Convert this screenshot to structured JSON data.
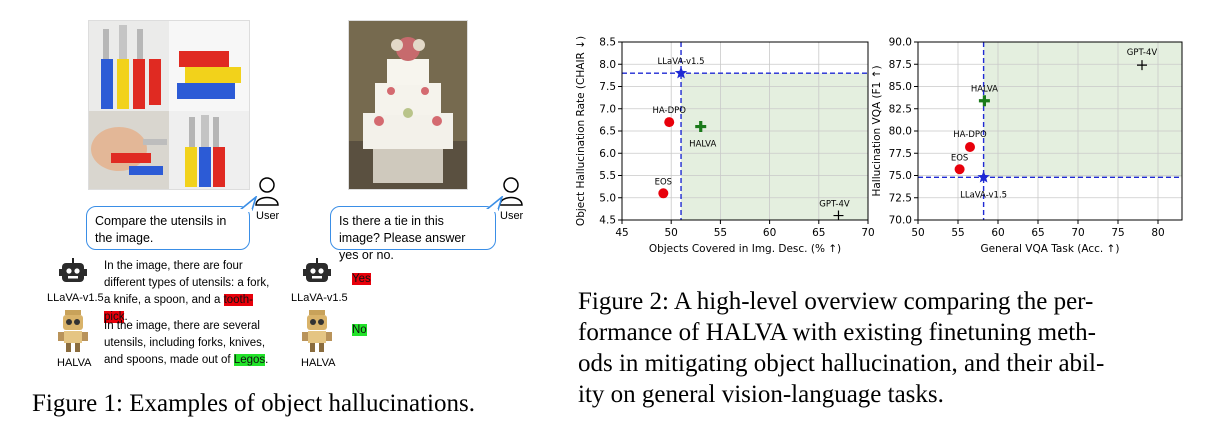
{
  "figure1": {
    "example1": {
      "user_label": "User",
      "prompt": "Compare the utensils in the image.",
      "llava": {
        "name": "LLaVA-v1.5",
        "text_before": "In the image, there are four different types of utensils:  a fork, a knife, a spoon, and a ",
        "highlight": "tooth-pick",
        "text_after": "."
      },
      "halva": {
        "name": "HALVA",
        "text_before": "In the image, there are several utensils, including forks, knives, and spoons, made out of ",
        "highlight": "Legos",
        "text_after": "."
      }
    },
    "example2": {
      "user_label": "User",
      "prompt": "Is there a tie in this image? Please answer yes or no.",
      "llava": {
        "name": "LLaVA-v1.5",
        "answer": "Yes"
      },
      "halva": {
        "name": "HALVA",
        "answer": "No"
      }
    },
    "caption": "Figure 1: Examples of object hallucinations."
  },
  "figure2": {
    "caption": "Figure 2: A high-level overview comparing the performance of HALVA with existing finetuning methods in mitigating object hallucination, and their ability on general vision-language tasks.",
    "caption_lines": [
      "Figure 2: A high-level overview comparing the per-",
      "formance of HALVA with existing finetuning meth-",
      "ods in mitigating object hallucination, and their abil-",
      "ity on general vision-language tasks."
    ]
  },
  "chart_data": [
    {
      "type": "scatter",
      "xlabel": "Objects Covered in Img. Desc. (% ↑)",
      "ylabel": "Object Hallucination Rate (CHAIR ↓)",
      "xlim": [
        45,
        70
      ],
      "ylim": [
        4.5,
        8.5
      ],
      "xticks": [
        45,
        50,
        55,
        60,
        65,
        70
      ],
      "yticks": [
        4.5,
        5.0,
        5.5,
        6.0,
        6.5,
        7.0,
        7.5,
        8.0,
        8.5
      ],
      "grid": true,
      "reference": {
        "name": "LLaVA-v1.5",
        "x": 51.0,
        "y": 7.8
      },
      "shaded_region": "x >= 51.0, y <= 7.8",
      "points": [
        {
          "name": "LLaVA-v1.5",
          "x": 51.0,
          "y": 7.8,
          "marker": "star",
          "color": "#1f2ad4"
        },
        {
          "name": "HA-DPO",
          "x": 49.8,
          "y": 6.7,
          "marker": "circle",
          "color": "#e8000b"
        },
        {
          "name": "HALVA",
          "x": 53.0,
          "y": 6.6,
          "marker": "plus",
          "color": "#1a7a1a"
        },
        {
          "name": "EOS",
          "x": 49.2,
          "y": 5.1,
          "marker": "circle",
          "color": "#e8000b"
        },
        {
          "name": "GPT-4V",
          "x": 67.0,
          "y": 4.6,
          "marker": "plus",
          "color": "#000000"
        }
      ]
    },
    {
      "type": "scatter",
      "xlabel": "General VQA Task (Acc. ↑)",
      "ylabel": "Hallucination VQA (F1 ↑)",
      "xlim": [
        50,
        83
      ],
      "ylim": [
        70.0,
        90.0
      ],
      "xticks": [
        50,
        55,
        60,
        65,
        70,
        75,
        80
      ],
      "yticks": [
        70.0,
        72.5,
        75.0,
        77.5,
        80.0,
        82.5,
        85.0,
        87.5,
        90.0
      ],
      "grid": true,
      "reference": {
        "name": "LLaVA-v1.5",
        "x": 58.2,
        "y": 74.8
      },
      "shaded_region": "x >= 58.2, y >= 74.8",
      "points": [
        {
          "name": "GPT-4V",
          "x": 78.0,
          "y": 87.4,
          "marker": "plus",
          "color": "#000000"
        },
        {
          "name": "HALVA",
          "x": 58.3,
          "y": 83.4,
          "marker": "plus",
          "color": "#1a7a1a"
        },
        {
          "name": "HA-DPO",
          "x": 56.5,
          "y": 78.2,
          "marker": "circle",
          "color": "#e8000b"
        },
        {
          "name": "EOS",
          "x": 55.2,
          "y": 75.7,
          "marker": "circle",
          "color": "#e8000b"
        },
        {
          "name": "LLaVA-v1.5",
          "x": 58.2,
          "y": 74.8,
          "marker": "star",
          "color": "#1f2ad4"
        }
      ]
    }
  ]
}
